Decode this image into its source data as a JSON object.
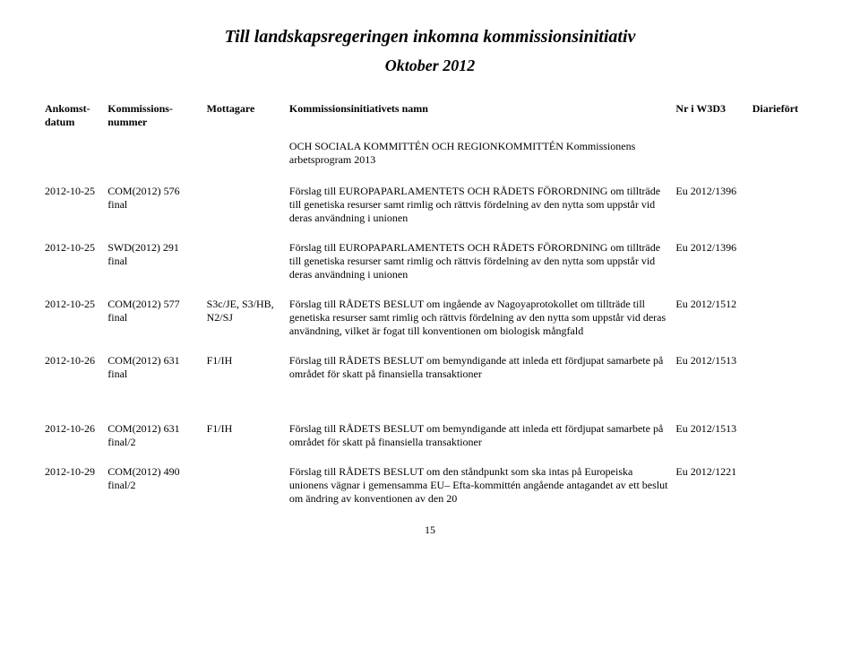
{
  "title": "Till landskapsregeringen inkomna kommissionsinitiativ",
  "subtitle": "Oktober 2012",
  "columns": {
    "date": "Ankomst-\ndatum",
    "number": "Kommissions-\nnummer",
    "recipient": "Mottagare",
    "name": "Kommissionsinitiativets namn",
    "w3d3": "Nr i W3D3",
    "diar": "Diariefört"
  },
  "header_continuation": "OCH SOCIALA KOMMITTÉN OCH REGIONKOMMITTÉN Kommissionens arbetsprogram 2013",
  "rows": [
    {
      "date": "2012-10-25",
      "number": "COM(2012) 576 final",
      "recipient": "",
      "name": "Förslag till EUROPAPARLAMENTETS OCH RÅDETS FÖRORDNING om tillträde till genetiska resurser samt rimlig och rättvis fördelning av den nytta som uppstår vid deras användning i unionen",
      "w3d3": "Eu 2012/1396",
      "diar": ""
    },
    {
      "date": "2012-10-25",
      "number": "SWD(2012) 291 final",
      "recipient": "",
      "name": "Förslag till EUROPAPARLAMENTETS OCH RÅDETS FÖRORDNING om tillträde till genetiska resurser samt rimlig och rättvis fördelning av den nytta som uppstår vid deras användning i unionen",
      "w3d3": "Eu 2012/1396",
      "diar": ""
    },
    {
      "date": "2012-10-25",
      "number": "COM(2012) 577 final",
      "recipient": "S3c/JE, S3/HB, N2/SJ",
      "name": "Förslag till RÅDETS BESLUT om ingående av Nagoyaprotokollet om tillträde till genetiska resurser samt rimlig och rättvis fördelning av den nytta som uppstår vid deras användning, vilket är fogat till konventionen om biologisk mångfald",
      "w3d3": "Eu 2012/1512",
      "diar": ""
    },
    {
      "date": "2012-10-26",
      "number": "COM(2012) 631 final",
      "recipient": "F1/IH",
      "name": "Förslag till RÅDETS BESLUT om bemyndigande att inleda ett fördjupat samarbete på området för skatt på finansiella transaktioner",
      "w3d3": "Eu 2012/1513",
      "diar": ""
    },
    {
      "date": "2012-10-26",
      "number": "COM(2012) 631 final/2",
      "recipient": "F1/IH",
      "name": "Förslag till RÅDETS BESLUT om bemyndigande att inleda ett fördjupat samarbete på området för skatt på finansiella transaktioner",
      "w3d3": "Eu 2012/1513",
      "diar": ""
    },
    {
      "date": "2012-10-29",
      "number": "COM(2012) 490 final/2",
      "recipient": "",
      "name": "Förslag till RÅDETS BESLUT om den ståndpunkt som ska intas på Europeiska unionens vägnar i gemensamma EU– Efta-kommittén angående antagandet av ett beslut om ändring av konventionen av den 20",
      "w3d3": "Eu 2012/1221",
      "diar": ""
    }
  ],
  "page_number": "15"
}
